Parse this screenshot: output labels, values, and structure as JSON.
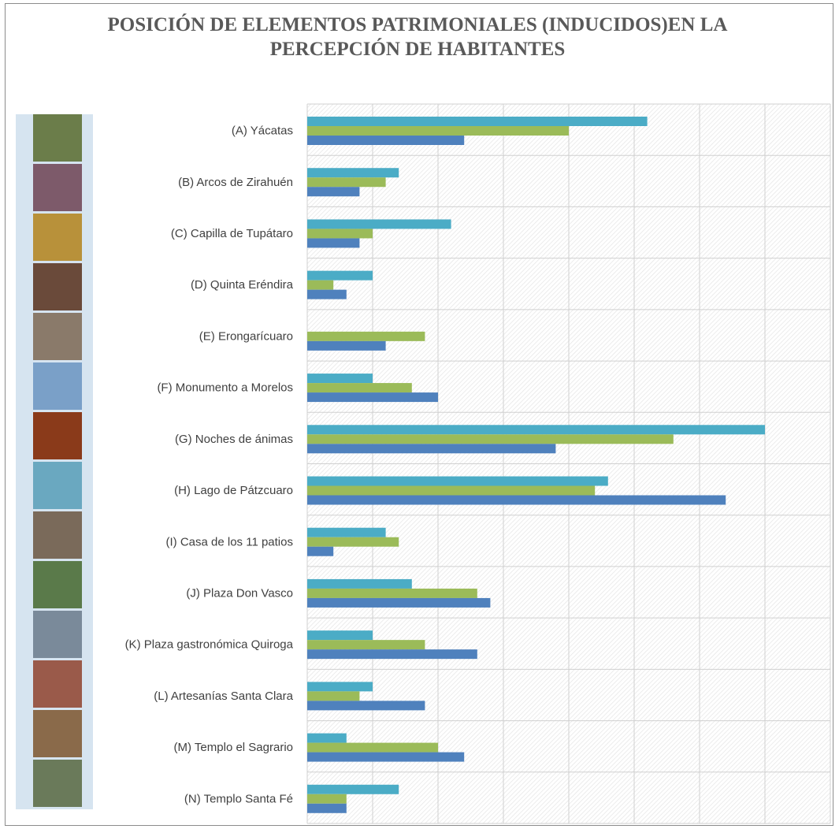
{
  "chart_data": {
    "type": "hbar",
    "title": "POSICIÓN DE ELEMENTOS PATRIMONIALES (INDUCIDOS)EN LA PERCEPCIÓN DE HABITANTES",
    "categories": [
      "(A) Yácatas",
      "(B) Arcos de Zirahuén",
      "(C) Capilla de Tupátaro",
      "(D) Quinta Eréndira",
      "(E) Erongarícuaro",
      "(F) Monumento  a Morelos",
      "(G) Noches de ánimas",
      "(H) Lago de Pátzcuaro",
      "(I) Casa de los 11 patios",
      "(J) Plaza Don Vasco",
      "(K) Plaza gastronómica Quiroga",
      "(L) Artesanías Santa Clara",
      "(M) Templo el Sagrario",
      "(N) Templo Santa Fé"
    ],
    "series": [
      {
        "color": "#4bacc6",
        "values": [
          5.2,
          1.4,
          2.2,
          1,
          null,
          1,
          7,
          4.6,
          1.2,
          1.6,
          1,
          1,
          0.6,
          1.4
        ]
      },
      {
        "color": "#9bbb59",
        "values": [
          4,
          1.2,
          1,
          0.4,
          1.8,
          1.6,
          5.6,
          4.4,
          1.4,
          2.6,
          1.8,
          0.8,
          2,
          0.6
        ]
      },
      {
        "color": "#4f81bd",
        "values": [
          2.4,
          0.8,
          0.8,
          0.6,
          1.2,
          2,
          3.8,
          6.4,
          0.4,
          2.8,
          2.6,
          1.8,
          2.4,
          0.6
        ]
      }
    ],
    "xlim": [
      0,
      8
    ],
    "xticks": [
      0,
      1,
      2,
      3,
      4,
      5,
      6,
      7,
      8
    ],
    "grid": true
  }
}
